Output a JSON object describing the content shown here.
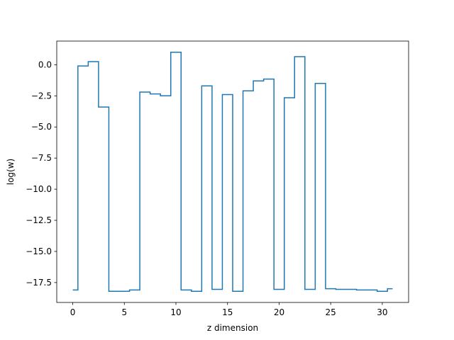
{
  "chart_data": {
    "type": "line",
    "step": "mid",
    "xlabel": "z dimension",
    "ylabel": "log(w)",
    "xlim": [
      -1.55,
      32.55
    ],
    "ylim": [
      -19.1,
      1.9
    ],
    "xticks": [
      0,
      5,
      10,
      15,
      20,
      25,
      30
    ],
    "yticks": [
      0.0,
      -2.5,
      -5.0,
      -7.5,
      -10.0,
      -12.5,
      -15.0,
      -17.5
    ],
    "xtick_labels": [
      "0",
      "5",
      "10",
      "15",
      "20",
      "25",
      "30"
    ],
    "ytick_labels": [
      "0.0",
      "−2.5",
      "−5.0",
      "−7.5",
      "−10.0",
      "−12.5",
      "−15.0",
      "−17.5"
    ],
    "grid": false,
    "legend": "none",
    "series": [
      {
        "color": "#1f77b4",
        "x": [
          0,
          1,
          2,
          3,
          4,
          5,
          6,
          7,
          8,
          9,
          10,
          11,
          12,
          13,
          14,
          15,
          16,
          17,
          18,
          19,
          20,
          21,
          22,
          23,
          24,
          25,
          26,
          27,
          28,
          29,
          30,
          31
        ],
        "y": [
          -18.1,
          -0.1,
          0.25,
          -3.4,
          -18.2,
          -18.2,
          -18.1,
          -2.2,
          -2.35,
          -2.5,
          1.0,
          -18.1,
          -18.2,
          -1.7,
          -18.05,
          -2.4,
          -18.2,
          -2.1,
          -1.3,
          -1.15,
          -18.05,
          -2.65,
          0.65,
          -18.05,
          -1.5,
          -18.0,
          -18.05,
          -18.05,
          -18.1,
          -18.1,
          -18.2,
          -18.0
        ]
      }
    ]
  }
}
